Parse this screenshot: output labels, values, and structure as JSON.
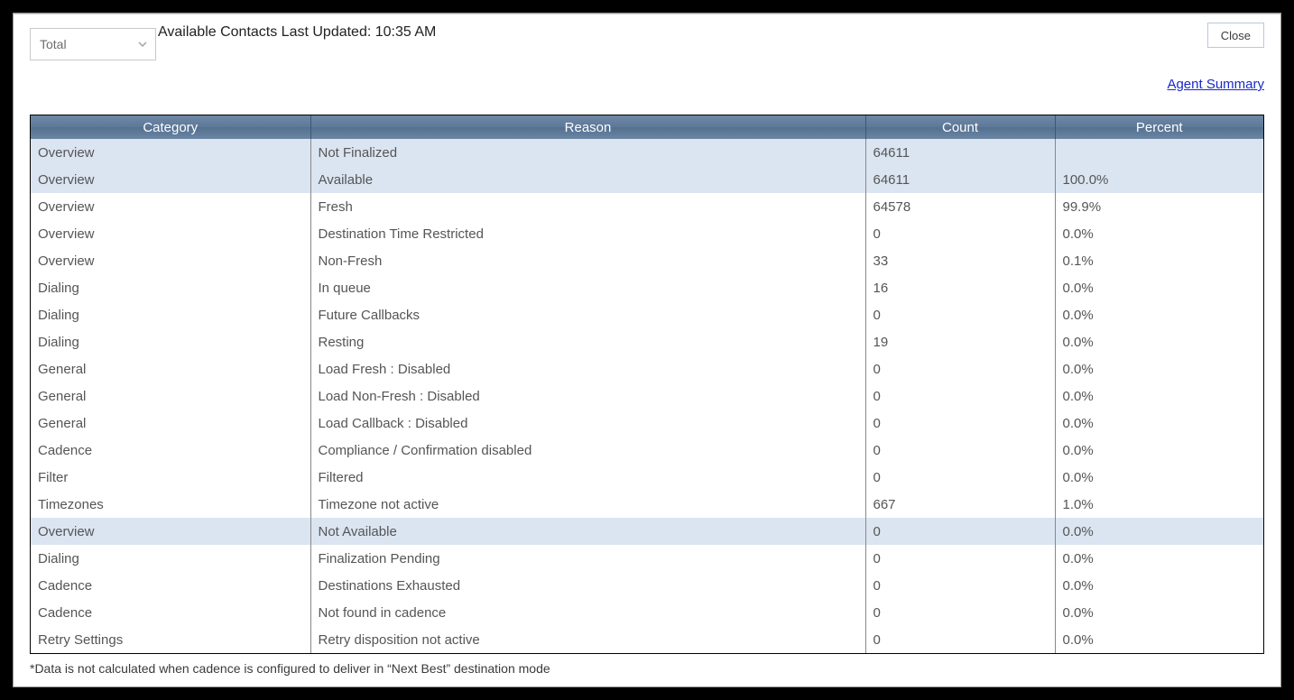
{
  "header": {
    "dropdown_value": "Total",
    "updated_text": "Available Contacts Last Updated: 10:35 AM",
    "close_label": "Close",
    "summary_link": "Agent Summary"
  },
  "table": {
    "columns": [
      "Category",
      "Reason",
      "Count",
      "Percent"
    ]
  },
  "rows": [
    {
      "category": "Overview",
      "reason": "Not Finalized",
      "count": "64611",
      "percent": "",
      "hl": true
    },
    {
      "category": "Overview",
      "reason": "Available",
      "count": "64611",
      "percent": "100.0%",
      "hl": true
    },
    {
      "category": "Overview",
      "reason": "Fresh",
      "count": "64578",
      "percent": "99.9%",
      "hl": false
    },
    {
      "category": "Overview",
      "reason": "Destination Time Restricted",
      "count": "0",
      "percent": "0.0%",
      "hl": false
    },
    {
      "category": "Overview",
      "reason": "Non-Fresh",
      "count": "33",
      "percent": "0.1%",
      "hl": false
    },
    {
      "category": "Dialing",
      "reason": "In queue",
      "count": "16",
      "percent": "0.0%",
      "hl": false
    },
    {
      "category": "Dialing",
      "reason": "Future Callbacks",
      "count": "0",
      "percent": "0.0%",
      "hl": false
    },
    {
      "category": "Dialing",
      "reason": "Resting",
      "count": "19",
      "percent": "0.0%",
      "hl": false
    },
    {
      "category": "General",
      "reason": "Load Fresh : Disabled",
      "count": "0",
      "percent": "0.0%",
      "hl": false
    },
    {
      "category": "General",
      "reason": "Load Non-Fresh : Disabled",
      "count": "0",
      "percent": "0.0%",
      "hl": false
    },
    {
      "category": "General",
      "reason": "Load Callback : Disabled",
      "count": "0",
      "percent": "0.0%",
      "hl": false
    },
    {
      "category": "Cadence",
      "reason": "Compliance / Confirmation disabled",
      "count": "0",
      "percent": "0.0%",
      "hl": false
    },
    {
      "category": "Filter",
      "reason": "Filtered",
      "count": "0",
      "percent": "0.0%",
      "hl": false
    },
    {
      "category": "Timezones",
      "reason": "Timezone not active",
      "count": "667",
      "percent": "1.0%",
      "hl": false
    },
    {
      "category": "Overview",
      "reason": "Not Available",
      "count": "0",
      "percent": "0.0%",
      "hl": true
    },
    {
      "category": "Dialing",
      "reason": "Finalization Pending",
      "count": "0",
      "percent": "0.0%",
      "hl": false
    },
    {
      "category": "Cadence",
      "reason": "Destinations Exhausted",
      "count": "0",
      "percent": "0.0%",
      "hl": false
    },
    {
      "category": "Cadence",
      "reason": "Not found in cadence",
      "count": "0",
      "percent": "0.0%",
      "hl": false
    },
    {
      "category": "Retry Settings",
      "reason": "Retry disposition not active",
      "count": "0",
      "percent": "0.0%",
      "hl": false
    }
  ],
  "footnote": "*Data is not calculated when cadence is configured to deliver in “Next Best” destination mode"
}
